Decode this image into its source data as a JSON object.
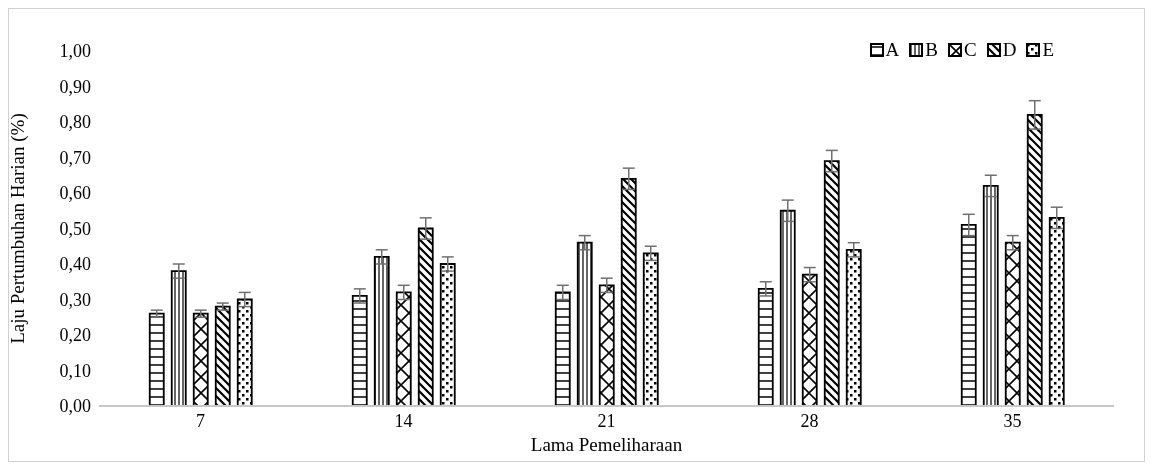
{
  "chart_data": {
    "type": "bar",
    "xlabel": "Lama Pemeliharaan",
    "ylabel": "Laju Pertumbuhan Harian (%)",
    "categories": [
      "7",
      "14",
      "21",
      "28",
      "35"
    ],
    "series": [
      {
        "name": "A",
        "color": "#000000",
        "values": [
          0.26,
          0.31,
          0.32,
          0.33,
          0.51
        ],
        "errors": [
          0.01,
          0.02,
          0.02,
          0.02,
          0.03
        ]
      },
      {
        "name": "B",
        "color": "#000000",
        "values": [
          0.38,
          0.42,
          0.46,
          0.55,
          0.62
        ],
        "errors": [
          0.02,
          0.02,
          0.02,
          0.03,
          0.03
        ]
      },
      {
        "name": "C",
        "color": "#000000",
        "values": [
          0.26,
          0.32,
          0.34,
          0.37,
          0.46
        ],
        "errors": [
          0.01,
          0.02,
          0.02,
          0.02,
          0.02
        ]
      },
      {
        "name": "D",
        "color": "#000000",
        "values": [
          0.28,
          0.5,
          0.64,
          0.69,
          0.82
        ],
        "errors": [
          0.01,
          0.03,
          0.03,
          0.03,
          0.04
        ]
      },
      {
        "name": "E",
        "color": "#000000",
        "values": [
          0.3,
          0.4,
          0.43,
          0.44,
          0.53
        ],
        "errors": [
          0.02,
          0.02,
          0.02,
          0.02,
          0.03
        ]
      }
    ],
    "ylim": [
      0,
      1
    ],
    "yticks": [
      {
        "value": 0,
        "label": "0,00"
      },
      {
        "value": 0.1,
        "label": "0,10"
      },
      {
        "value": 0.2,
        "label": "0,20"
      },
      {
        "value": 0.3,
        "label": "0,30"
      },
      {
        "value": 0.4,
        "label": "0,40"
      },
      {
        "value": 0.5,
        "label": "0,50"
      },
      {
        "value": 0.6,
        "label": "0,60"
      },
      {
        "value": 0.7,
        "label": "0,70"
      },
      {
        "value": 0.8,
        "label": "0,80"
      },
      {
        "value": 0.9,
        "label": "0,90"
      },
      {
        "value": 1,
        "label": "1,00"
      }
    ],
    "grid": false,
    "legend": "top right"
  }
}
